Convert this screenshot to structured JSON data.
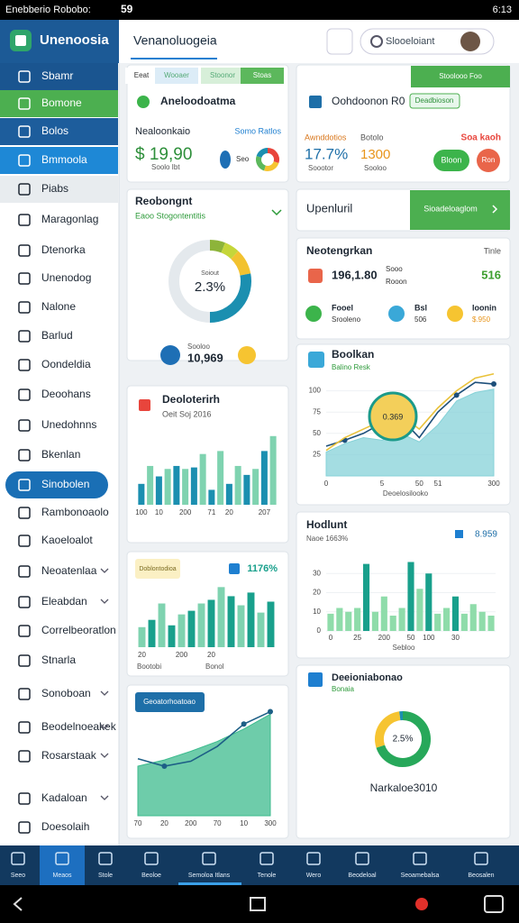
{
  "status_bar": {
    "carrier": "Enebberio Robobo:",
    "signal": "59",
    "time": "6:13"
  },
  "header": {
    "logo": "Unenoosia",
    "title": "Venanoluogeia",
    "search": "Slooeloiant"
  },
  "sidebar": [
    "Sbamr",
    "Bomone",
    "Bolos",
    "Bmmoola",
    "Piabs",
    "Maragonlag",
    "Dtenorka",
    "Unenodog",
    "Nalone",
    "Barlud",
    "Oondeldia",
    "Deoohans",
    "Unedohnns",
    "Bkenlan",
    "Sinobolen",
    "Rambonoaolo",
    "Kaoeloalot",
    "Neoatenlaa",
    "Eleabdan",
    "Correlbeoratlon",
    "Stnarla",
    "Sonoboan",
    "Beodelnoeakek",
    "Rosarstaak",
    "Kadaloan",
    "Doesolaih"
  ],
  "bottom_nav": [
    "Seeo",
    "Meaos",
    "Stole",
    "Beoloe",
    "Semoloa Itlans",
    "Tenole",
    "Wero",
    "Beodeloal",
    "Seoamebalsa",
    "Beosalen"
  ],
  "cards": {
    "summary": {
      "tabs": [
        "Eeat",
        "Wooaer",
        "Stoonor",
        "Stoas"
      ],
      "title": "Aneloodoatma",
      "label": "Nealoonkaio",
      "link": "Somo Ratlos",
      "value": "$ 19,90",
      "caption": "Soolo Ibt",
      "badge": "Seo"
    },
    "report": {
      "title": "Reobongnt",
      "subtitle": "Eaoo Stogontentitis",
      "total_label": "Sooloo",
      "total": "10,969"
    },
    "deposits": {
      "title": "Deoloterirh",
      "subtitle": "Oeit Soj 2016"
    },
    "growth": {
      "tag": "Doblontodioa",
      "value": "1176%",
      "footer": [
        "Bootobi",
        "Bonol"
      ]
    },
    "trend": {
      "tag": "Geoatorhoatoao"
    },
    "overview": {
      "title": "Oohdoonon R0",
      "button": "Stoolooo Foo",
      "tag": "Deadbioson",
      "labels": [
        "Awnddotios",
        "Botolo",
        "Soa kaoh"
      ],
      "values": [
        "17.7%",
        "1300"
      ],
      "captions": [
        "Soootor",
        "Sooloo"
      ],
      "pills": [
        "Bloon",
        "Ron"
      ]
    },
    "update": {
      "title": "Upenluril",
      "button": "Sioadeloaglom"
    },
    "negotiation": {
      "title": "Neotengrkan",
      "note": "Tinle",
      "amount": "196,1.80",
      "amount_label": [
        "Sooo",
        "Rooon"
      ],
      "score": "516",
      "items": [
        {
          "label": "Fooel",
          "value": "Srooleno"
        },
        {
          "label": "Bsl",
          "value": "506"
        },
        {
          "label": "Ioonin",
          "value": "$.950"
        }
      ]
    },
    "balance": {
      "title": "Boolkan",
      "subtitle": "Balino Resk",
      "bubble": "0.369",
      "x_title": "Deoelosilooko"
    },
    "highlight": {
      "title": "Hodlunt",
      "subtitle": "Naoe 1663%",
      "value": "8.959",
      "x_title": "Sebloo"
    },
    "distribution": {
      "title": "Deeioniabonao",
      "subtitle": "Bonaia",
      "caption": "Narkaloe3010"
    }
  },
  "chart_data": [
    {
      "type": "pie",
      "values": [
        30,
        25,
        25,
        20
      ],
      "colors": [
        "#e8453c",
        "#f6c431",
        "#5cb85c",
        "#1b8fb0"
      ]
    },
    {
      "type": "pie",
      "center_label": "Soiout",
      "center_value": "2.3%",
      "values": [
        6,
        6,
        10,
        28,
        50
      ],
      "colors": [
        "#8db43a",
        "#c5d63a",
        "#f2c230",
        "#1b8fb0",
        "#e4e9ed"
      ]
    },
    {
      "type": "bar",
      "categories": [
        "100",
        null,
        "10",
        null,
        null,
        "200",
        null,
        null,
        "71",
        null,
        "20",
        null,
        null,
        null,
        "207",
        null
      ],
      "values": [
        28,
        52,
        38,
        48,
        52,
        48,
        50,
        68,
        20,
        72,
        28,
        52,
        40,
        48,
        72,
        92
      ],
      "colors": [
        "#1b8fb0",
        "#7fd3b0"
      ]
    },
    {
      "type": "bar",
      "categories": [
        "20",
        null,
        null,
        null,
        "200",
        null,
        null,
        "20",
        null,
        null,
        null,
        null,
        null,
        null
      ],
      "values": [
        22,
        30,
        48,
        24,
        36,
        40,
        48,
        52,
        66,
        56,
        46,
        60,
        38,
        50
      ],
      "colors": [
        "#7fd3b0",
        "#19a08c"
      ]
    },
    {
      "type": "area",
      "categories": [
        "70",
        "20",
        "200",
        "70",
        "10",
        "300"
      ],
      "series": [
        {
          "color": "#3dbb8e",
          "values": [
            40,
            45,
            52,
            60,
            70,
            82
          ]
        },
        {
          "color": "#1d5f86",
          "values": [
            46,
            40,
            44,
            56,
            74,
            84
          ]
        }
      ]
    },
    {
      "type": "area",
      "categories": [
        "0",
        null,
        null,
        "5",
        null,
        "50",
        "51",
        null,
        null,
        "300"
      ],
      "ylim": [
        0,
        125
      ],
      "yticks": [
        25,
        50,
        75,
        100
      ],
      "series": [
        {
          "color": "#86d2d8",
          "values": [
            28,
            38,
            45,
            42,
            50,
            40,
            60,
            88,
            98,
            102
          ]
        },
        {
          "color": "#1d4f7a",
          "values": [
            35,
            42,
            50,
            62,
            68,
            45,
            75,
            95,
            110,
            108
          ]
        },
        {
          "color": "#e9c23a",
          "values": [
            30,
            45,
            55,
            65,
            72,
            55,
            80,
            100,
            115,
            120
          ]
        }
      ]
    },
    {
      "type": "bar",
      "categories": [
        "0",
        null,
        null,
        "25",
        null,
        null,
        "200",
        null,
        null,
        "50",
        null,
        "100",
        null,
        null,
        "30",
        null,
        null,
        null,
        null
      ],
      "values": [
        9,
        12,
        10,
        12,
        35,
        10,
        18,
        8,
        12,
        36,
        22,
        30,
        9,
        12,
        18,
        9,
        14,
        10,
        8
      ],
      "ylim": [
        0,
        40
      ],
      "yticks": [
        0,
        10,
        20,
        30
      ],
      "colors": [
        "#8fdcaa",
        "#8fdcaa",
        "#8fdcaa",
        "#8fdcaa",
        "#19a08c",
        "#8fdcaa",
        "#8fdcaa",
        "#8fdcaa",
        "#8fdcaa",
        "#19a08c",
        "#8fdcaa",
        "#19a08c",
        "#8fdcaa",
        "#8fdcaa",
        "#19a08c",
        "#8fdcaa",
        "#8fdcaa",
        "#8fdcaa",
        "#8fdcaa"
      ]
    },
    {
      "type": "pie",
      "center_value": "2.5%",
      "values": [
        70,
        28,
        2
      ],
      "colors": [
        "#27a85a",
        "#f6c431",
        "#1b8fb0"
      ]
    }
  ]
}
